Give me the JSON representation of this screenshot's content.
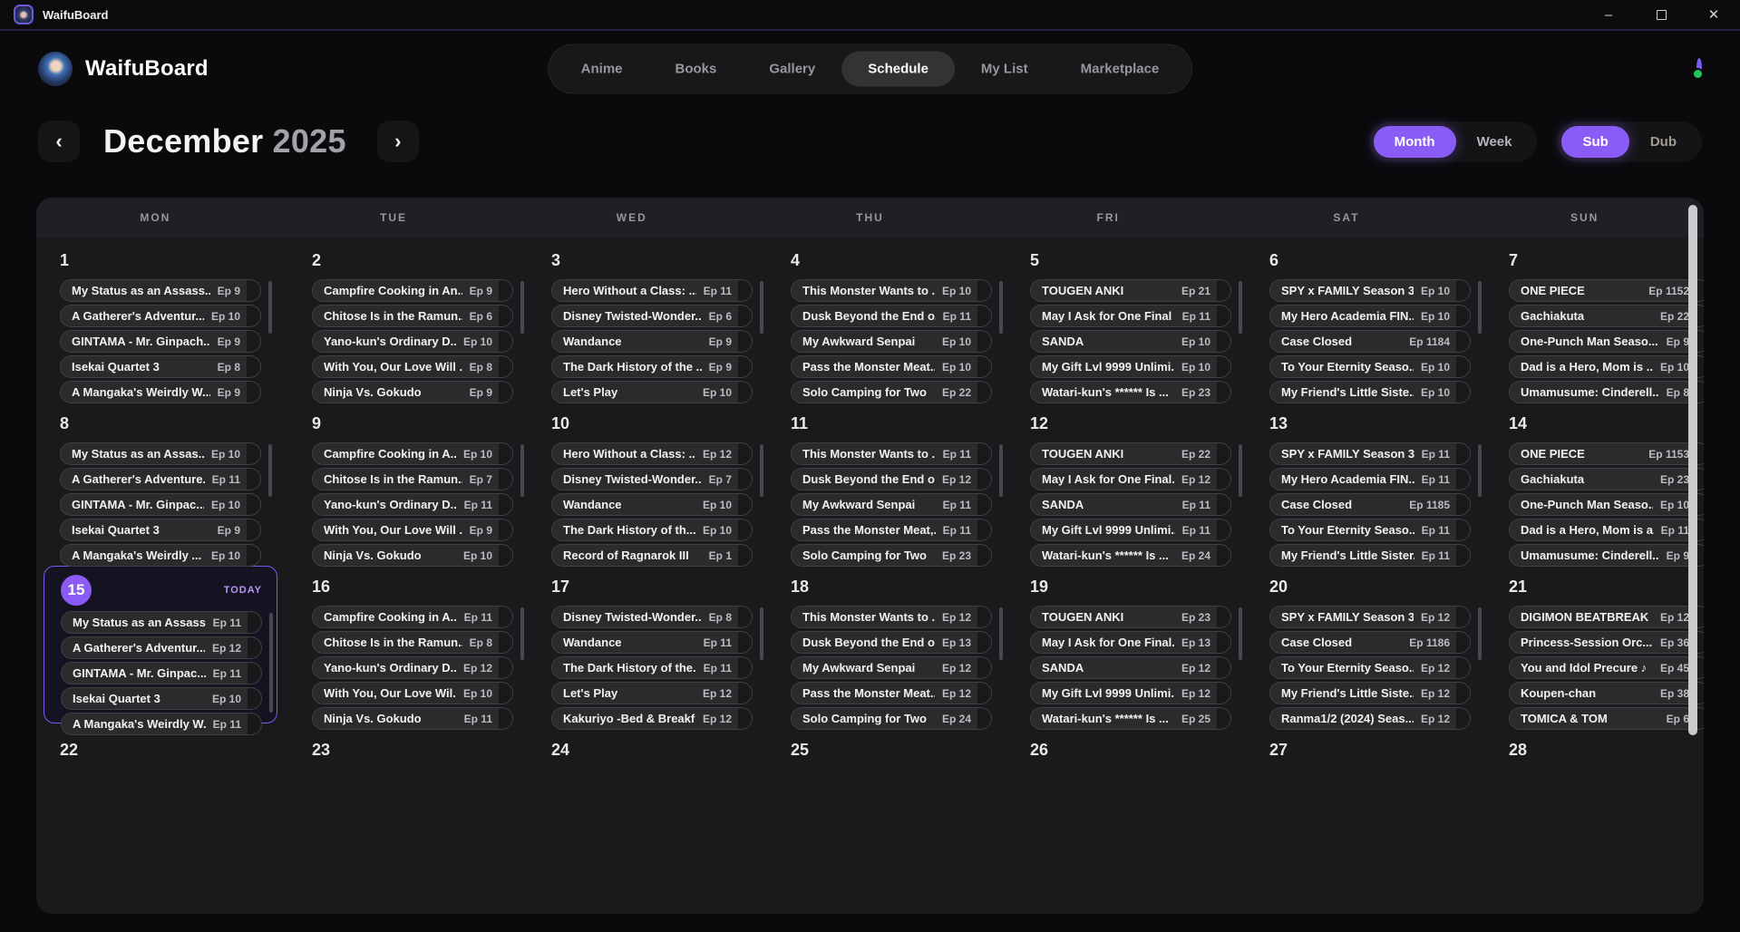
{
  "window": {
    "title": "WaifuBoard",
    "minimize_glyph": "–",
    "close_glyph": "✕"
  },
  "header": {
    "brand": "WaifuBoard",
    "nav": {
      "items": [
        {
          "label": "Anime",
          "active": false
        },
        {
          "label": "Books",
          "active": false
        },
        {
          "label": "Gallery",
          "active": false
        },
        {
          "label": "Schedule",
          "active": true
        },
        {
          "label": "My List",
          "active": false
        },
        {
          "label": "Marketplace",
          "active": false
        }
      ]
    },
    "avatar": {
      "status_color": "#22c55e"
    }
  },
  "toolbar": {
    "prev_glyph": "‹",
    "next_glyph": "›",
    "month": "December",
    "year": "2025",
    "view_toggle": [
      {
        "label": "Month",
        "active": true
      },
      {
        "label": "Week",
        "active": false
      }
    ],
    "audio_toggle": [
      {
        "label": "Sub",
        "active": true
      },
      {
        "label": "Dub",
        "active": false
      }
    ]
  },
  "colors": {
    "accent": "#8a5cf5",
    "status_green": "#22c55e"
  },
  "calendar": {
    "day_headers": [
      "MON",
      "TUE",
      "WED",
      "THU",
      "FRI",
      "SAT",
      "SUN"
    ],
    "today_label": "TODAY",
    "days": [
      {
        "date": 1,
        "events": [
          {
            "title": "My Status as an Assass...",
            "ep": "Ep 9"
          },
          {
            "title": "A Gatherer's Adventur...",
            "ep": "Ep 10"
          },
          {
            "title": "GINTAMA - Mr. Ginpach...",
            "ep": "Ep 9"
          },
          {
            "title": "Isekai Quartet 3",
            "ep": "Ep 8"
          },
          {
            "title": "A Mangaka's Weirdly W...",
            "ep": "Ep 9"
          }
        ]
      },
      {
        "date": 2,
        "events": [
          {
            "title": "Campfire Cooking in An...",
            "ep": "Ep 9"
          },
          {
            "title": "Chitose Is in the Ramun...",
            "ep": "Ep 6"
          },
          {
            "title": "Yano-kun's Ordinary D...",
            "ep": "Ep 10"
          },
          {
            "title": "With You, Our Love Will ...",
            "ep": "Ep 8"
          },
          {
            "title": "Ninja Vs. Gokudo",
            "ep": "Ep 9"
          }
        ]
      },
      {
        "date": 3,
        "events": [
          {
            "title": "Hero Without a Class: ...",
            "ep": "Ep 11"
          },
          {
            "title": "Disney Twisted-Wonder...",
            "ep": "Ep 6"
          },
          {
            "title": "Wandance",
            "ep": "Ep 9"
          },
          {
            "title": "The Dark History of the ...",
            "ep": "Ep 9"
          },
          {
            "title": "Let's Play",
            "ep": "Ep 10"
          }
        ]
      },
      {
        "date": 4,
        "events": [
          {
            "title": "This Monster Wants to ...",
            "ep": "Ep 10"
          },
          {
            "title": "Dusk Beyond the End o...",
            "ep": "Ep 11"
          },
          {
            "title": "My Awkward Senpai",
            "ep": "Ep 10"
          },
          {
            "title": "Pass the Monster Meat...",
            "ep": "Ep 10"
          },
          {
            "title": "Solo Camping for Two",
            "ep": "Ep 22"
          }
        ]
      },
      {
        "date": 5,
        "events": [
          {
            "title": "TOUGEN ANKI",
            "ep": "Ep 21"
          },
          {
            "title": "May I Ask for One Final ...",
            "ep": "Ep 11"
          },
          {
            "title": "SANDA",
            "ep": "Ep 10"
          },
          {
            "title": "My Gift Lvl 9999 Unlimi...",
            "ep": "Ep 10"
          },
          {
            "title": "Watari-kun's ****** Is ...",
            "ep": "Ep 23"
          }
        ]
      },
      {
        "date": 6,
        "events": [
          {
            "title": "SPY x FAMILY Season 3",
            "ep": "Ep 10"
          },
          {
            "title": "My Hero Academia FIN...",
            "ep": "Ep 10"
          },
          {
            "title": "Case Closed",
            "ep": "Ep 1184"
          },
          {
            "title": "To Your Eternity Seaso...",
            "ep": "Ep 10"
          },
          {
            "title": "My Friend's Little Siste...",
            "ep": "Ep 10"
          }
        ]
      },
      {
        "date": 7,
        "events": [
          {
            "title": "ONE PIECE",
            "ep": "Ep 1152"
          },
          {
            "title": "Gachiakuta",
            "ep": "Ep 22"
          },
          {
            "title": "One-Punch Man Seaso...",
            "ep": "Ep 9"
          },
          {
            "title": "Dad is a Hero, Mom is ...",
            "ep": "Ep 10"
          },
          {
            "title": "Umamusume: Cinderell...",
            "ep": "Ep 8"
          }
        ]
      },
      {
        "date": 8,
        "events": [
          {
            "title": "My Status as an Assas...",
            "ep": "Ep 10"
          },
          {
            "title": "A Gatherer's Adventure...",
            "ep": "Ep 11"
          },
          {
            "title": "GINTAMA - Mr. Ginpac...",
            "ep": "Ep 10"
          },
          {
            "title": "Isekai Quartet 3",
            "ep": "Ep 9"
          },
          {
            "title": "A Mangaka's Weirdly ...",
            "ep": "Ep 10"
          }
        ]
      },
      {
        "date": 9,
        "events": [
          {
            "title": "Campfire Cooking in A...",
            "ep": "Ep 10"
          },
          {
            "title": "Chitose Is in the Ramun...",
            "ep": "Ep 7"
          },
          {
            "title": "Yano-kun's Ordinary D...",
            "ep": "Ep 11"
          },
          {
            "title": "With You, Our Love Will ...",
            "ep": "Ep 9"
          },
          {
            "title": "Ninja Vs. Gokudo",
            "ep": "Ep 10"
          }
        ]
      },
      {
        "date": 10,
        "events": [
          {
            "title": "Hero Without a Class: ...",
            "ep": "Ep 12"
          },
          {
            "title": "Disney Twisted-Wonder...",
            "ep": "Ep 7"
          },
          {
            "title": "Wandance",
            "ep": "Ep 10"
          },
          {
            "title": "The Dark History of th...",
            "ep": "Ep 10"
          },
          {
            "title": "Record of Ragnarok III",
            "ep": "Ep 1"
          }
        ]
      },
      {
        "date": 11,
        "events": [
          {
            "title": "This Monster Wants to ...",
            "ep": "Ep 11"
          },
          {
            "title": "Dusk Beyond the End o...",
            "ep": "Ep 12"
          },
          {
            "title": "My Awkward Senpai",
            "ep": "Ep 11"
          },
          {
            "title": "Pass the Monster Meat,...",
            "ep": "Ep 11"
          },
          {
            "title": "Solo Camping for Two",
            "ep": "Ep 23"
          }
        ]
      },
      {
        "date": 12,
        "events": [
          {
            "title": "TOUGEN ANKI",
            "ep": "Ep 22"
          },
          {
            "title": "May I Ask for One Final...",
            "ep": "Ep 12"
          },
          {
            "title": "SANDA",
            "ep": "Ep 11"
          },
          {
            "title": "My Gift Lvl 9999 Unlimi...",
            "ep": "Ep 11"
          },
          {
            "title": "Watari-kun's ****** Is ...",
            "ep": "Ep 24"
          }
        ]
      },
      {
        "date": 13,
        "events": [
          {
            "title": "SPY x FAMILY Season 3",
            "ep": "Ep 11"
          },
          {
            "title": "My Hero Academia FIN...",
            "ep": "Ep 11"
          },
          {
            "title": "Case Closed",
            "ep": "Ep 1185"
          },
          {
            "title": "To Your Eternity Seaso...",
            "ep": "Ep 11"
          },
          {
            "title": "My Friend's Little Sister...",
            "ep": "Ep 11"
          }
        ]
      },
      {
        "date": 14,
        "events": [
          {
            "title": "ONE PIECE",
            "ep": "Ep 1153"
          },
          {
            "title": "Gachiakuta",
            "ep": "Ep 23"
          },
          {
            "title": "One-Punch Man Seaso...",
            "ep": "Ep 10"
          },
          {
            "title": "Dad is a Hero, Mom is a...",
            "ep": "Ep 11"
          },
          {
            "title": "Umamusume: Cinderell...",
            "ep": "Ep 9"
          }
        ]
      },
      {
        "date": 15,
        "today": true,
        "events": [
          {
            "title": "My Status as an Assass...",
            "ep": "Ep 11"
          },
          {
            "title": "A Gatherer's Adventur...",
            "ep": "Ep 12"
          },
          {
            "title": "GINTAMA - Mr. Ginpac...",
            "ep": "Ep 11"
          },
          {
            "title": "Isekai Quartet 3",
            "ep": "Ep 10"
          },
          {
            "title": "A Mangaka's Weirdly W...",
            "ep": "Ep 11"
          }
        ]
      },
      {
        "date": 16,
        "events": [
          {
            "title": "Campfire Cooking in A...",
            "ep": "Ep 11"
          },
          {
            "title": "Chitose Is in the Ramun...",
            "ep": "Ep 8"
          },
          {
            "title": "Yano-kun's Ordinary D...",
            "ep": "Ep 12"
          },
          {
            "title": "With You, Our Love Wil...",
            "ep": "Ep 10"
          },
          {
            "title": "Ninja Vs. Gokudo",
            "ep": "Ep 11"
          }
        ]
      },
      {
        "date": 17,
        "events": [
          {
            "title": "Disney Twisted-Wonder...",
            "ep": "Ep 8"
          },
          {
            "title": "Wandance",
            "ep": "Ep 11"
          },
          {
            "title": "The Dark History of the...",
            "ep": "Ep 11"
          },
          {
            "title": "Let's Play",
            "ep": "Ep 12"
          },
          {
            "title": "Kakuriyo -Bed & Breakf...",
            "ep": "Ep 12"
          }
        ]
      },
      {
        "date": 18,
        "events": [
          {
            "title": "This Monster Wants to ...",
            "ep": "Ep 12"
          },
          {
            "title": "Dusk Beyond the End o...",
            "ep": "Ep 13"
          },
          {
            "title": "My Awkward Senpai",
            "ep": "Ep 12"
          },
          {
            "title": "Pass the Monster Meat...",
            "ep": "Ep 12"
          },
          {
            "title": "Solo Camping for Two",
            "ep": "Ep 24"
          }
        ]
      },
      {
        "date": 19,
        "events": [
          {
            "title": "TOUGEN ANKI",
            "ep": "Ep 23"
          },
          {
            "title": "May I Ask for One Final...",
            "ep": "Ep 13"
          },
          {
            "title": "SANDA",
            "ep": "Ep 12"
          },
          {
            "title": "My Gift Lvl 9999 Unlimi...",
            "ep": "Ep 12"
          },
          {
            "title": "Watari-kun's ****** Is ...",
            "ep": "Ep 25"
          }
        ]
      },
      {
        "date": 20,
        "events": [
          {
            "title": "SPY x FAMILY Season 3",
            "ep": "Ep 12"
          },
          {
            "title": "Case Closed",
            "ep": "Ep 1186"
          },
          {
            "title": "To Your Eternity Seaso...",
            "ep": "Ep 12"
          },
          {
            "title": "My Friend's Little Siste...",
            "ep": "Ep 12"
          },
          {
            "title": "Ranma1/2 (2024) Seas...",
            "ep": "Ep 12"
          }
        ]
      },
      {
        "date": 21,
        "events": [
          {
            "title": "DIGIMON BEATBREAK",
            "ep": "Ep 12"
          },
          {
            "title": "Princess-Session Orc...",
            "ep": "Ep 36"
          },
          {
            "title": "You and Idol Precure ♪",
            "ep": "Ep 45"
          },
          {
            "title": "Koupen-chan",
            "ep": "Ep 38"
          },
          {
            "title": "TOMICA & TOM",
            "ep": "Ep 6"
          }
        ]
      },
      {
        "date": 22,
        "events": []
      },
      {
        "date": 23,
        "events": []
      },
      {
        "date": 24,
        "events": []
      },
      {
        "date": 25,
        "events": []
      },
      {
        "date": 26,
        "events": []
      },
      {
        "date": 27,
        "events": []
      },
      {
        "date": 28,
        "events": []
      }
    ]
  }
}
